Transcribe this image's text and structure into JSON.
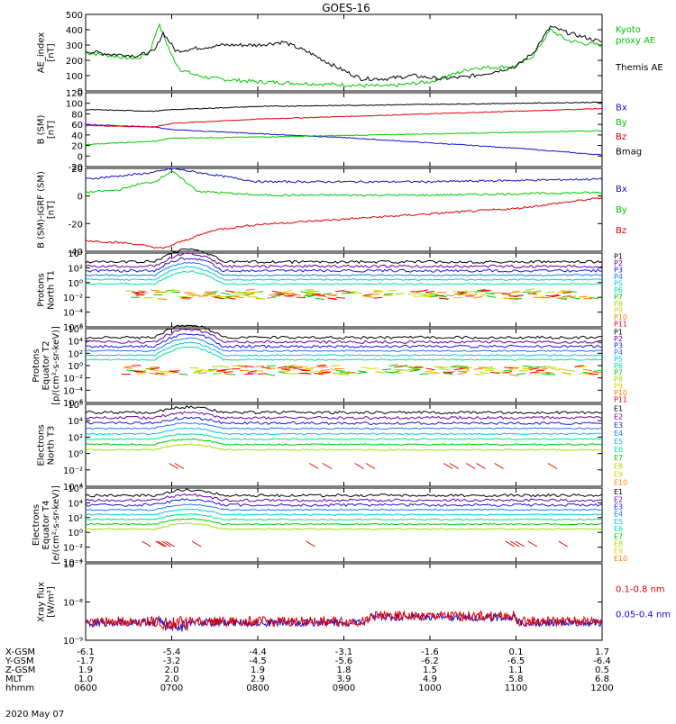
{
  "title": "GOES-16",
  "date_label": "2020 May 07",
  "colors": {
    "black": "#000000",
    "blue": "#1010d0",
    "green": "#00c800",
    "red": "#e00000",
    "p_colors": [
      "#000000",
      "#6a00a0",
      "#1a1ad8",
      "#1a78ff",
      "#00c8e0",
      "#00e0a0",
      "#00c800",
      "#a0e000",
      "#e0d000",
      "#ff8000",
      "#ff0000"
    ],
    "e_colors": [
      "#000000",
      "#6a00a0",
      "#1a1ad8",
      "#1a78ff",
      "#00c8e0",
      "#00e0a0",
      "#00c800",
      "#a0e000",
      "#e0d000",
      "#ff8000",
      "#e00000"
    ]
  },
  "panels": [
    {
      "id": "ae",
      "ylabel": [
        "AE_index",
        "[nT]"
      ],
      "yticks": [
        "500",
        "400",
        "300",
        "200",
        "100",
        "0"
      ],
      "legend": [
        {
          "text": "Kyoto",
          "color": "#00c800"
        },
        {
          "text": "proxy AE",
          "color": "#00c800"
        },
        {
          "text": "Themis AE",
          "color": "#000000"
        }
      ]
    },
    {
      "id": "bsm",
      "ylabel": [
        "B (SM)",
        "[nT]"
      ],
      "yticks": [
        "120",
        "100",
        "80",
        "60",
        "40",
        "20",
        "0",
        "-20"
      ],
      "legend": [
        {
          "text": "Bx",
          "color": "#1010d0"
        },
        {
          "text": "By",
          "color": "#00c800"
        },
        {
          "text": "Bz",
          "color": "#e00000"
        },
        {
          "text": "Bmag",
          "color": "#000000"
        }
      ]
    },
    {
      "id": "bigrf",
      "ylabel": [
        "B (SM)-IGRF (SM)",
        "[nT]"
      ],
      "yticks": [
        "20",
        "0",
        "-20",
        "-40"
      ],
      "legend": [
        {
          "text": "Bx",
          "color": "#1010d0"
        },
        {
          "text": "By",
          "color": "#00c800"
        },
        {
          "text": "Bz",
          "color": "#e00000"
        }
      ]
    },
    {
      "id": "pn",
      "ylabel": [
        "Protons",
        "North T1"
      ],
      "yticks": [
        "10⁴",
        "10²",
        "10⁰",
        "10⁻²",
        "10⁻⁴",
        "10⁻⁶"
      ],
      "legend_list": [
        "P1",
        "P2",
        "P3",
        "P4",
        "P5",
        "P6",
        "P7",
        "P8",
        "P9",
        "P10",
        "P11"
      ]
    },
    {
      "id": "pe",
      "ylabel": [
        "Protons",
        "Equator T2",
        "[p/(cm²-s-sr-keV)]"
      ],
      "yticks": [
        "10⁶",
        "10⁴",
        "10²",
        "10⁰",
        "10⁻²",
        "10⁻⁴",
        "10⁻⁶"
      ],
      "legend_list": [
        "P1",
        "P2",
        "P3",
        "P4",
        "P5",
        "P6",
        "P7",
        "P8",
        "P9",
        "P10",
        "P11"
      ]
    },
    {
      "id": "en",
      "ylabel": [
        "Electrons",
        "North T3"
      ],
      "yticks": [
        "10⁶",
        "10⁴",
        "10²",
        "10⁰",
        "10⁻²",
        "10⁻⁴"
      ],
      "legend_list": [
        "E1",
        "E2",
        "E3",
        "E4",
        "E5",
        "E6",
        "E7",
        "E8",
        "E9",
        "E10"
      ]
    },
    {
      "id": "ee",
      "ylabel": [
        "Electrons",
        "Equator T4",
        "[e/(cm²-s-sr-keV)]"
      ],
      "yticks": [
        "10⁶",
        "10⁴",
        "10²",
        "10⁰",
        "10⁻²",
        "10⁻⁴"
      ],
      "legend_list": [
        "E1",
        "E2",
        "E3",
        "E4",
        "E5",
        "E6",
        "E7",
        "E8",
        "E9",
        "E10"
      ]
    },
    {
      "id": "xray",
      "ylabel": [
        "Xray flux",
        "[W/m²]"
      ],
      "yticks": [
        "10⁻⁷",
        "10⁻⁸",
        "10⁻⁹"
      ],
      "legend": [
        {
          "text": "0.1-0.8 nm",
          "color": "#e00000"
        },
        {
          "text": "0.05-0.4 nm",
          "color": "#1010d0"
        }
      ]
    }
  ],
  "ephemeris": {
    "labels": [
      "X-GSM",
      "Y-GSM",
      "Z-GSM",
      "MLT",
      "hhmm"
    ],
    "columns": [
      [
        "-6.1",
        "-1.7",
        "1.9",
        "1.0",
        "0600"
      ],
      [
        "-5.4",
        "-3.2",
        "2.0",
        "2.0",
        "0700"
      ],
      [
        "-4.4",
        "-4.5",
        "1.9",
        "2.9",
        "0800"
      ],
      [
        "-3.1",
        "-5.6",
        "1.8",
        "3.9",
        "0900"
      ],
      [
        "-1.6",
        "-6.2",
        "1.5",
        "4.9",
        "1000"
      ],
      [
        "0.1",
        "-6.5",
        "1.1",
        "5.8",
        "1100"
      ],
      [
        "1.7",
        "-6.4",
        "0.5",
        "6.8",
        "1200"
      ]
    ]
  },
  "chart_data": {
    "type": "line",
    "x_unit": "UT hour",
    "x_range": [
      6,
      12
    ],
    "panels": {
      "ae": {
        "ylim": [
          0,
          500
        ],
        "series": [
          {
            "name": "Kyoto proxy AE",
            "color": "#00c800",
            "x": [
              6.0,
              6.3,
              6.6,
              6.75,
              6.85,
              7.0,
              7.1,
              7.3,
              7.5,
              8.0,
              8.5,
              9.0,
              9.5,
              10.0,
              10.5,
              11.0,
              11.2,
              11.4,
              11.6,
              11.8,
              12.0
            ],
            "y": [
              250,
              230,
              210,
              260,
              440,
              230,
              140,
              100,
              80,
              60,
              50,
              40,
              30,
              60,
              150,
              160,
              230,
              400,
              330,
              310,
              300
            ]
          },
          {
            "name": "Themis AE",
            "color": "#000000",
            "x": [
              6.0,
              6.3,
              6.6,
              6.8,
              6.9,
              7.05,
              7.3,
              7.6,
              8.0,
              8.3,
              8.6,
              8.9,
              9.2,
              9.5,
              9.8,
              10.1,
              10.4,
              10.7,
              11.0,
              11.2,
              11.4,
              11.6,
              11.8,
              12.0
            ],
            "y": [
              260,
              240,
              230,
              260,
              380,
              260,
              280,
              300,
              300,
              320,
              250,
              160,
              80,
              80,
              100,
              80,
              90,
              120,
              160,
              250,
              420,
              380,
              350,
              320
            ]
          }
        ]
      },
      "bsm": {
        "ylim": [
          -20,
          120
        ],
        "series": [
          {
            "name": "Bx",
            "color": "#1010d0",
            "x": [
              6.0,
              6.8,
              7.0,
              9.0,
              11.0,
              12.0
            ],
            "y": [
              60,
              55,
              50,
              35,
              15,
              2
            ]
          },
          {
            "name": "By",
            "color": "#00c800",
            "x": [
              6.0,
              6.8,
              7.0,
              8.0,
              10.0,
              12.0
            ],
            "y": [
              22,
              28,
              34,
              36,
              42,
              48
            ]
          },
          {
            "name": "Bz",
            "color": "#e00000",
            "x": [
              6.0,
              6.8,
              7.0,
              8.0,
              10.0,
              12.0
            ],
            "y": [
              58,
              55,
              62,
              70,
              80,
              90
            ]
          },
          {
            "name": "Bmag",
            "color": "#000000",
            "x": [
              6.0,
              6.8,
              7.0,
              8.0,
              10.0,
              12.0
            ],
            "y": [
              88,
              85,
              88,
              94,
              98,
              102
            ]
          }
        ]
      },
      "bigrf": {
        "ylim": [
          -42,
          20
        ],
        "series": [
          {
            "name": "Bx",
            "color": "#1010d0",
            "x": [
              6.0,
              6.5,
              6.8,
              7.0,
              8.0,
              10.0,
              12.0
            ],
            "y": [
              12,
              15,
              17,
              20,
              10,
              10,
              12
            ]
          },
          {
            "name": "By",
            "color": "#00c800",
            "x": [
              6.0,
              6.4,
              6.6,
              6.8,
              7.0,
              7.3,
              8.0,
              10.0,
              12.0
            ],
            "y": [
              2,
              4,
              8,
              10,
              18,
              3,
              0,
              0,
              2
            ]
          },
          {
            "name": "Bz",
            "color": "#e00000",
            "x": [
              6.0,
              6.5,
              6.9,
              7.1,
              7.5,
              8.0,
              9.0,
              10.0,
              11.0,
              12.0
            ],
            "y": [
              -34,
              -36,
              -40,
              -35,
              -26,
              -22,
              -18,
              -14,
              -10,
              -2
            ]
          }
        ]
      },
      "xray": {
        "ylim": [
          "1e-9",
          "1e-7"
        ],
        "series": [
          {
            "name": "0.1-0.8 nm",
            "color": "#e00000"
          },
          {
            "name": "0.05-0.4 nm",
            "color": "#1010d0"
          }
        ]
      }
    }
  }
}
